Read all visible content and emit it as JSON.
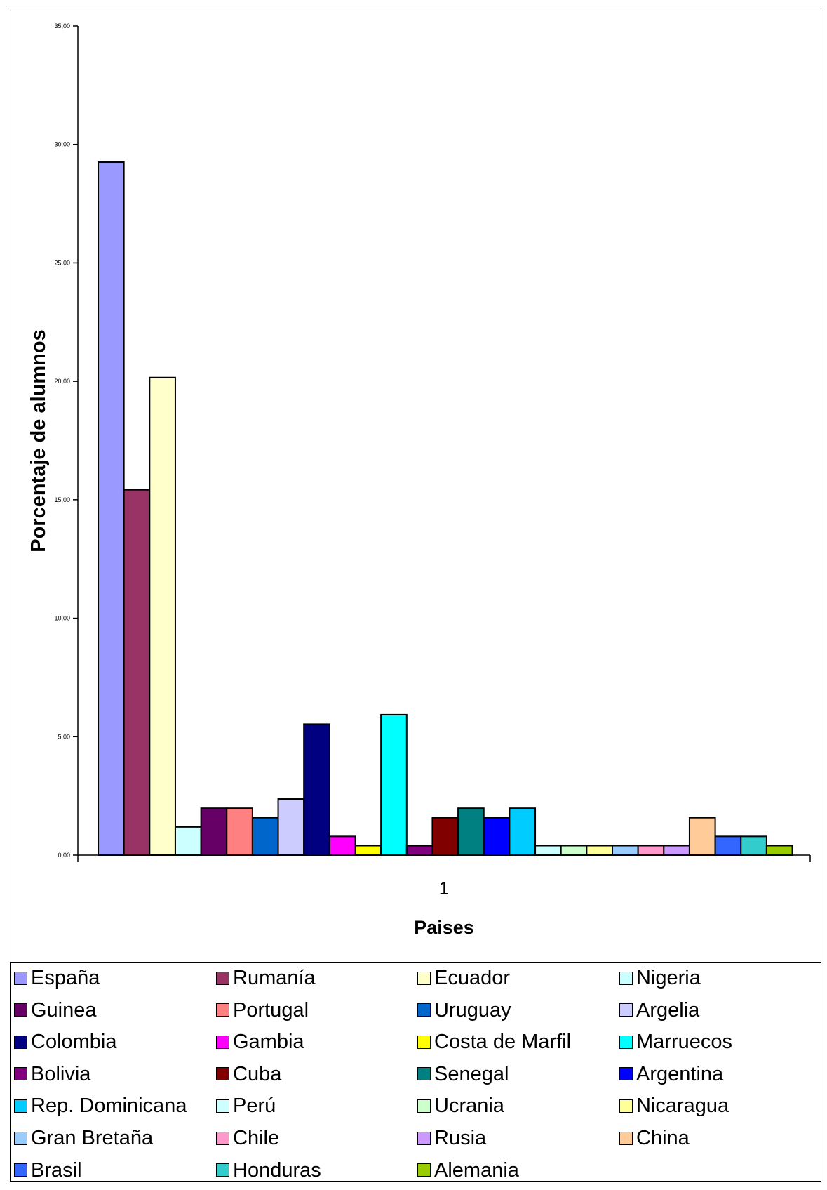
{
  "chart_data": {
    "type": "bar",
    "categories": [
      "1"
    ],
    "xlabel": "Paises",
    "ylabel": "Porcentaje de alumnos",
    "ylim": [
      0,
      35
    ],
    "yticks": [
      "0,00",
      "5,00",
      "10,00",
      "15,00",
      "20,00",
      "25,00",
      "30,00",
      "35,00"
    ],
    "grid": false,
    "legend_position": "bottom",
    "series": [
      {
        "name": "España",
        "values": [
          29.25
        ],
        "color": "#9999FF"
      },
      {
        "name": "Rumanía",
        "values": [
          15.42
        ],
        "color": "#993366"
      },
      {
        "name": "Ecuador",
        "values": [
          20.16
        ],
        "color": "#FFFFCC"
      },
      {
        "name": "Nigeria",
        "values": [
          1.19
        ],
        "color": "#CCFFFF"
      },
      {
        "name": "Guinea",
        "values": [
          1.98
        ],
        "color": "#660066"
      },
      {
        "name": "Portugal",
        "values": [
          1.98
        ],
        "color": "#FF8080"
      },
      {
        "name": "Uruguay",
        "values": [
          1.58
        ],
        "color": "#0066CC"
      },
      {
        "name": "Argelia",
        "values": [
          2.37
        ],
        "color": "#CCCCFF"
      },
      {
        "name": "Colombia",
        "values": [
          5.53
        ],
        "color": "#000080"
      },
      {
        "name": "Gambia",
        "values": [
          0.79
        ],
        "color": "#FF00FF"
      },
      {
        "name": "Costa de Marfil",
        "values": [
          0.4
        ],
        "color": "#FFFF00"
      },
      {
        "name": "Marruecos",
        "values": [
          5.93
        ],
        "color": "#00FFFF"
      },
      {
        "name": "Bolivia",
        "values": [
          0.4
        ],
        "color": "#800080"
      },
      {
        "name": "Cuba",
        "values": [
          1.58
        ],
        "color": "#800000"
      },
      {
        "name": "Senegal",
        "values": [
          1.98
        ],
        "color": "#008080"
      },
      {
        "name": "Argentina",
        "values": [
          1.58
        ],
        "color": "#0000FF"
      },
      {
        "name": "Rep. Dominicana",
        "values": [
          1.98
        ],
        "color": "#00CCFF"
      },
      {
        "name": "Perú",
        "values": [
          0.4
        ],
        "color": "#CCFFFF"
      },
      {
        "name": "Ucrania",
        "values": [
          0.4
        ],
        "color": "#CCFFCC"
      },
      {
        "name": "Nicaragua",
        "values": [
          0.4
        ],
        "color": "#FFFF99"
      },
      {
        "name": "Gran Bretaña",
        "values": [
          0.4
        ],
        "color": "#99CCFF"
      },
      {
        "name": "Chile",
        "values": [
          0.4
        ],
        "color": "#FF99CC"
      },
      {
        "name": "Rusia",
        "values": [
          0.4
        ],
        "color": "#CC99FF"
      },
      {
        "name": "China",
        "values": [
          1.58
        ],
        "color": "#FFCC99"
      },
      {
        "name": "Brasil",
        "values": [
          0.79
        ],
        "color": "#3366FF"
      },
      {
        "name": "Honduras",
        "values": [
          0.79
        ],
        "color": "#33CCCC"
      },
      {
        "name": "Alemania",
        "values": [
          0.4
        ],
        "color": "#99CC00"
      }
    ]
  }
}
